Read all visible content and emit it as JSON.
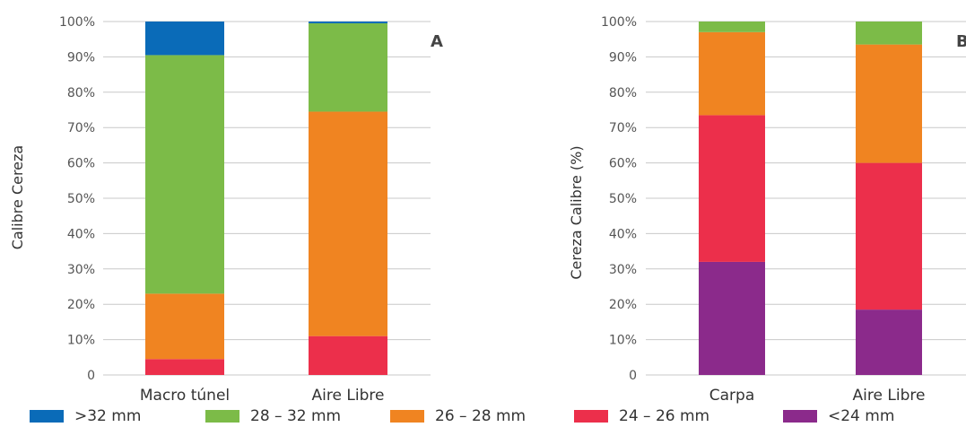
{
  "chart_data": [
    {
      "type": "bar",
      "stacked": true,
      "panel_tag": "A",
      "ylabel": "Calibre Cereza",
      "categories": [
        "Macro túnel",
        "Aire Libre"
      ],
      "yticks": [
        "0",
        "10%",
        "20%",
        "30%",
        "40%",
        "50%",
        "60%",
        "70%",
        "80%",
        "90%",
        "100%"
      ],
      "ylim": [
        0,
        100
      ],
      "series": [
        {
          "name": "<24 mm",
          "values": [
            0,
            0
          ]
        },
        {
          "name": "24 - 26 mm",
          "values": [
            4.5,
            11
          ]
        },
        {
          "name": "26 - 28 mm",
          "values": [
            18.5,
            63.5
          ]
        },
        {
          "name": "28 - 32 mm",
          "values": [
            67.5,
            25
          ]
        },
        {
          "name": ">32 mm",
          "values": [
            9.5,
            0.5
          ]
        }
      ],
      "grid": true
    },
    {
      "type": "bar",
      "stacked": true,
      "panel_tag": "B",
      "ylabel": "Cereza Calibre (%)",
      "categories": [
        "Carpa",
        "Aire Libre"
      ],
      "yticks": [
        "0",
        "10%",
        "20%",
        "30%",
        "40%",
        "50%",
        "60%",
        "70%",
        "80%",
        "90%",
        "100%"
      ],
      "ylim": [
        0,
        100
      ],
      "series": [
        {
          "name": "<24 mm",
          "values": [
            32,
            18.5
          ]
        },
        {
          "name": "24 - 26 mm",
          "values": [
            41.5,
            41.5
          ]
        },
        {
          "name": "26 - 28 mm",
          "values": [
            23.5,
            33.5
          ]
        },
        {
          "name": "28 - 32 mm",
          "values": [
            3,
            6.5
          ]
        },
        {
          "name": ">32 mm",
          "values": [
            0,
            0
          ]
        }
      ],
      "grid": true
    }
  ],
  "legend": [
    {
      "label": ">32 mm",
      "color": "#0a6bb8"
    },
    {
      "label": "28 – 32 mm",
      "color": "#7cbb48"
    },
    {
      "label": "26 – 28 mm",
      "color": "#f08421"
    },
    {
      "label": "24 – 26 mm",
      "color": "#ec2f4b"
    },
    {
      "label": "<24 mm",
      "color": "#8b2a8b"
    }
  ],
  "colors": {
    "<24 mm": "#8b2a8b",
    "24 - 26 mm": "#ec2f4b",
    "26 - 28 mm": "#f08421",
    "28 - 32 mm": "#7cbb48",
    ">32 mm": "#0a6bb8",
    "grid": "#c8c8c8"
  }
}
